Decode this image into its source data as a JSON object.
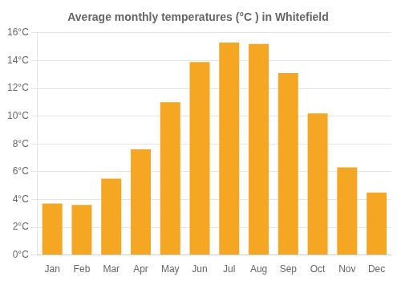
{
  "chart_data": {
    "type": "bar",
    "title": "Average monthly temperatures (°C ) in Whitefield",
    "categories": [
      "Jan",
      "Feb",
      "Mar",
      "Apr",
      "May",
      "Jun",
      "Jul",
      "Aug",
      "Sep",
      "Oct",
      "Nov",
      "Dec"
    ],
    "values": [
      3.7,
      3.6,
      5.5,
      7.6,
      11.0,
      13.9,
      15.3,
      15.2,
      13.1,
      10.2,
      6.3,
      4.5
    ],
    "color": "#F5A623",
    "ylim": [
      0,
      16
    ],
    "yticks": [
      {
        "value": 0,
        "label": "0°C"
      },
      {
        "value": 2,
        "label": "2°C"
      },
      {
        "value": 4,
        "label": "4°C"
      },
      {
        "value": 6,
        "label": "6°C"
      },
      {
        "value": 8,
        "label": "8°C"
      },
      {
        "value": 10,
        "label": "10°C"
      },
      {
        "value": 12,
        "label": "12°C"
      },
      {
        "value": 14,
        "label": "14°C"
      },
      {
        "value": 16,
        "label": "16°C"
      }
    ],
    "grid": true
  }
}
